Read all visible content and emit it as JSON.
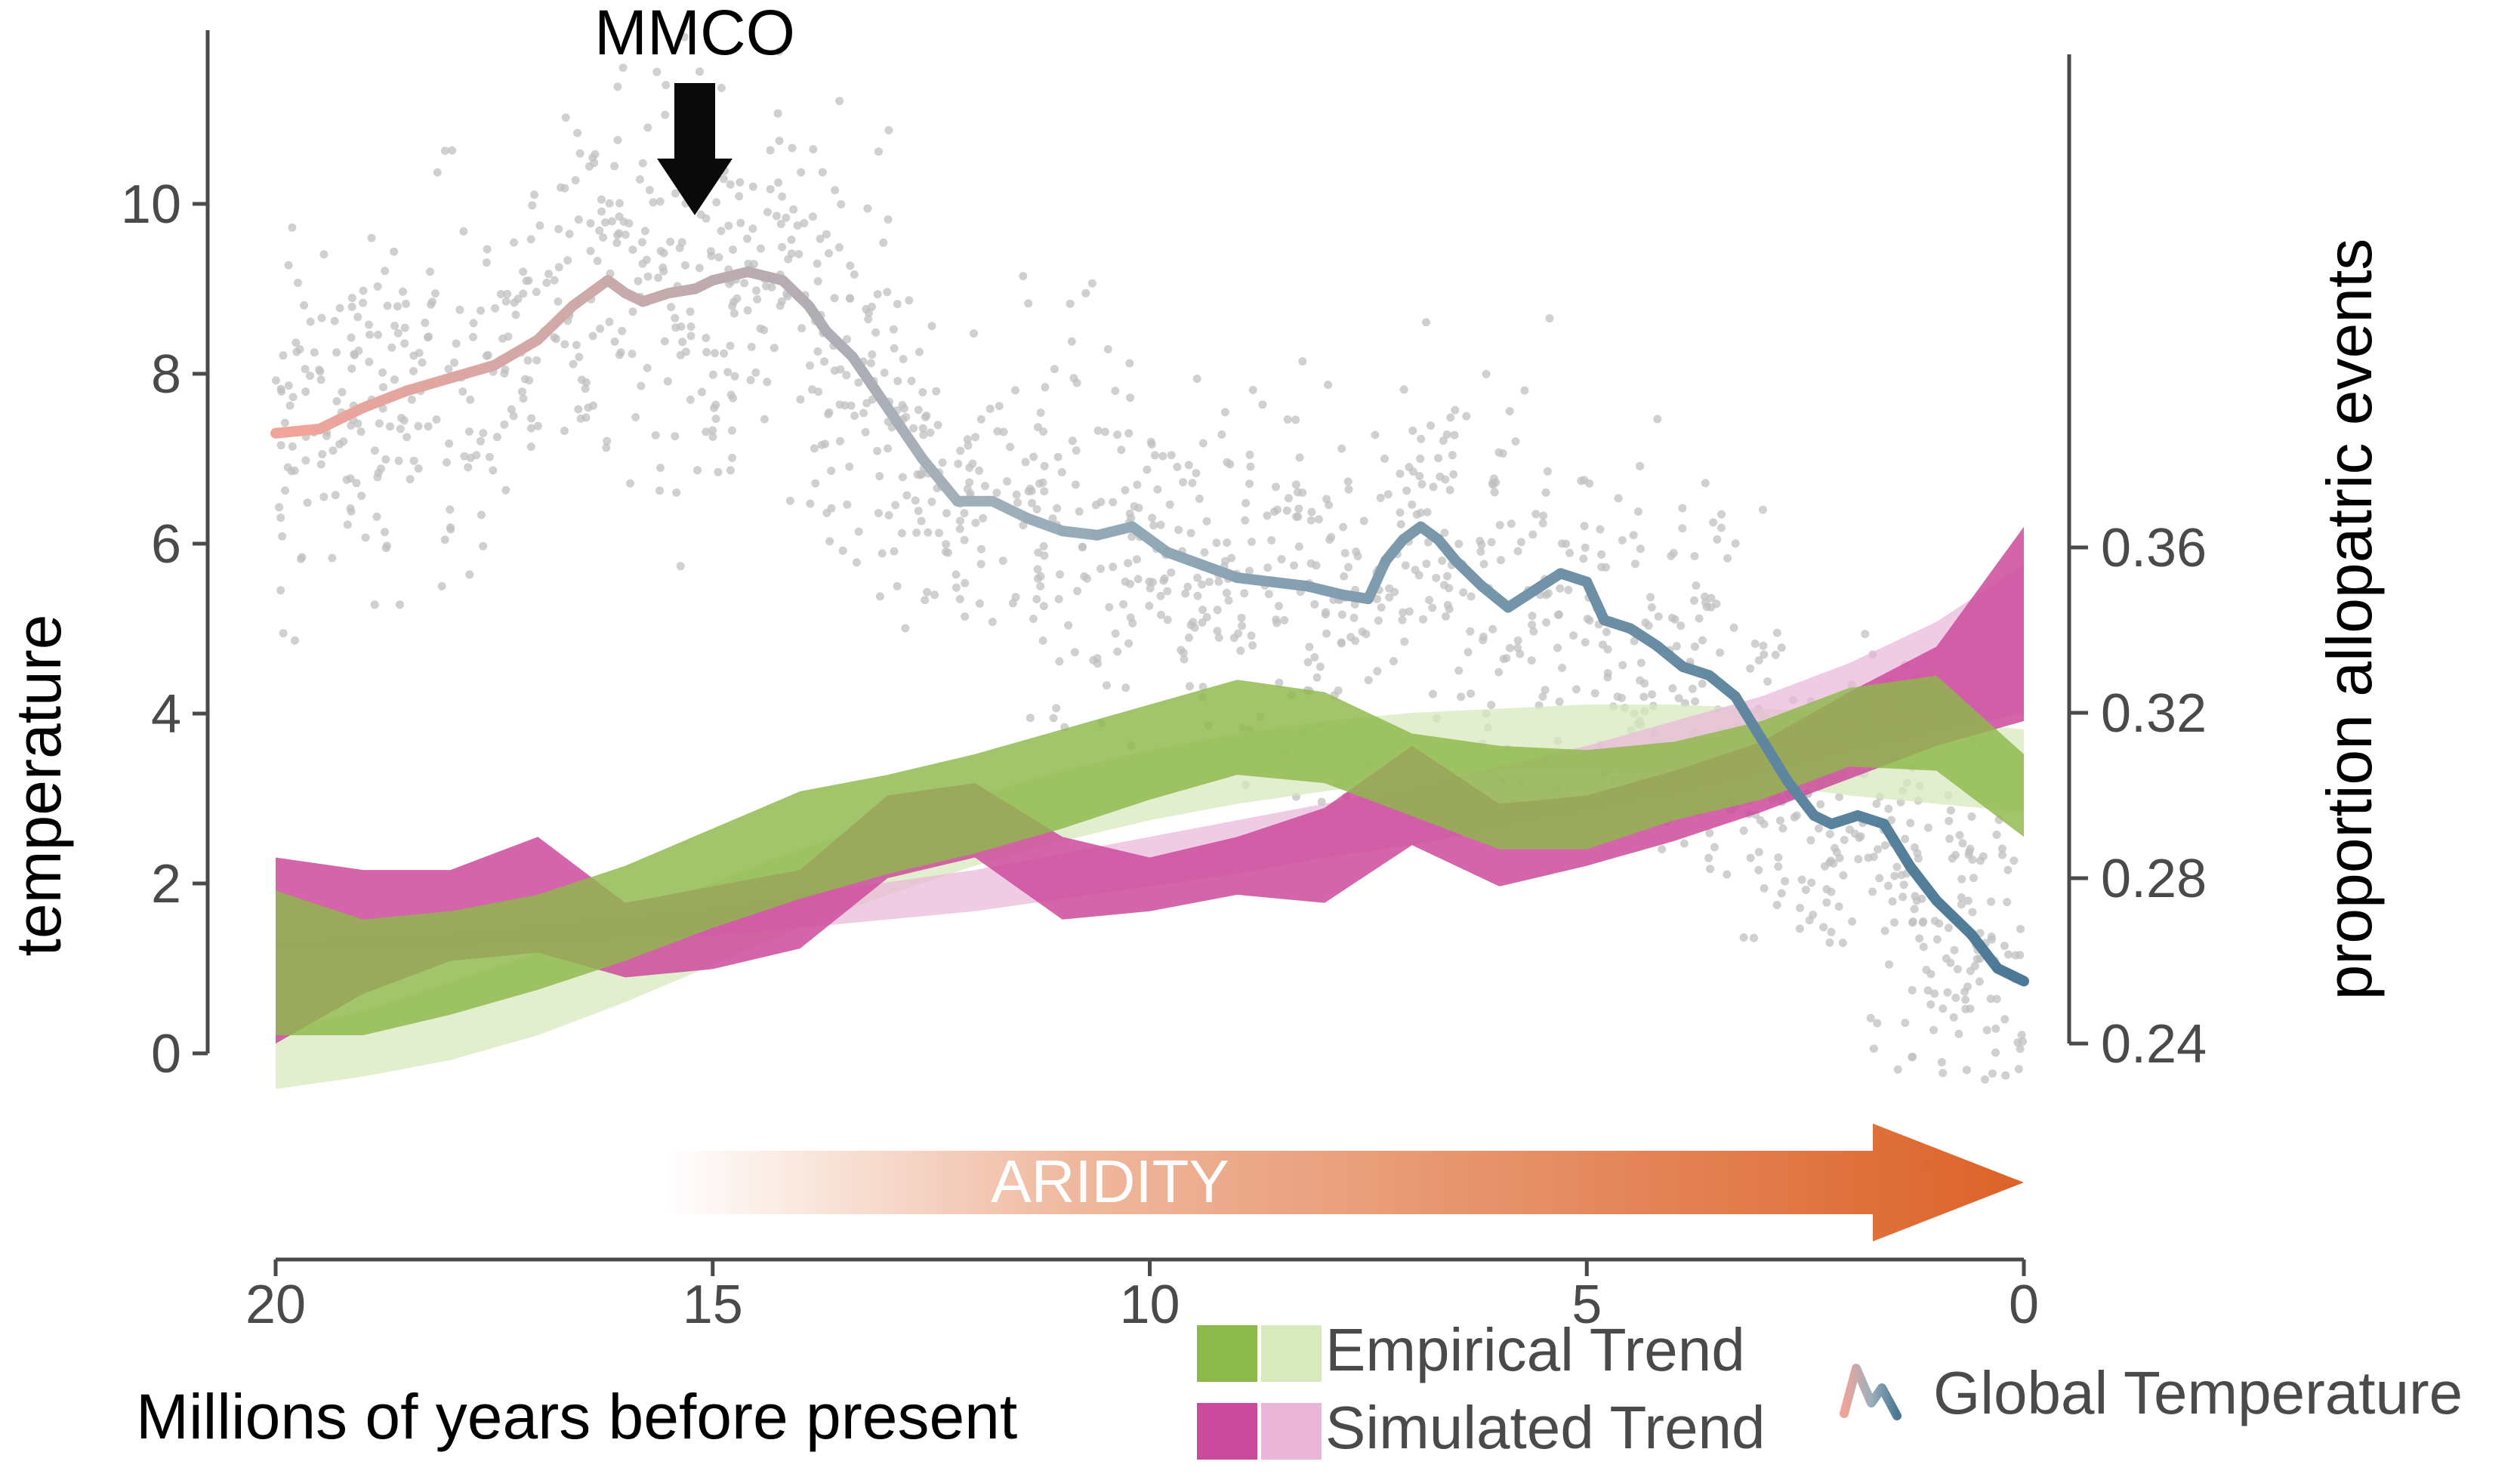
{
  "chart_data": {
    "type": "line",
    "title": "",
    "xlabel": "Millions of years before present",
    "ylabel_left": "temperature",
    "ylabel_right": "proportion allopatric events",
    "x_reversed": true,
    "xlim": [
      20,
      0
    ],
    "ylim_left": [
      -1,
      12
    ],
    "ylim_right": [
      0.22,
      0.365
    ],
    "x_ticks": [
      "20",
      "15",
      "10",
      "5",
      "0"
    ],
    "y_left_ticks": [
      "0",
      "2",
      "4",
      "6",
      "8",
      "10"
    ],
    "y_right_ticks": [
      "0.24",
      "0.28",
      "0.32",
      "0.36"
    ],
    "grid": false,
    "annotations": {
      "mmco": {
        "label": "MMCO",
        "x": 15.2
      },
      "aridity": {
        "label": "ARIDITY",
        "x_start": 15.5,
        "x_end": 0
      }
    },
    "legend": {
      "placement": "bottom-right",
      "empirical": "Empirical Trend",
      "simulated": "Simulated Trend",
      "temperature": "Global Temperature"
    },
    "colors": {
      "empirical_dark": "#8db84a",
      "empirical_light": "#d7e9bd",
      "simulated_dark": "#cc4a9c",
      "simulated_light": "#eab6d8",
      "temp_warm": "#f0a49a",
      "temp_mid": "#9eb0bc",
      "temp_cool": "#4a7896",
      "points": "#c0c0c0",
      "aridity": "#dc6228"
    },
    "series": [
      {
        "name": "Global Temperature",
        "axis": "left",
        "x": [
          20,
          19.5,
          19,
          18.5,
          18,
          17.5,
          17,
          16.6,
          16.2,
          16.0,
          15.8,
          15.5,
          15.2,
          15.0,
          14.6,
          14.2,
          13.9,
          13.7,
          13.4,
          13.0,
          12.6,
          12.2,
          11.8,
          11.4,
          11.0,
          10.6,
          10.2,
          9.8,
          9.4,
          9.0,
          8.6,
          8.2,
          7.8,
          7.5,
          7.3,
          7.1,
          6.9,
          6.7,
          6.5,
          6.2,
          5.9,
          5.6,
          5.3,
          5.0,
          4.8,
          4.5,
          4.2,
          3.9,
          3.6,
          3.3,
          3.0,
          2.7,
          2.4,
          2.2,
          1.9,
          1.6,
          1.3,
          1.0,
          0.6,
          0.3,
          0
        ],
        "y": [
          7.3,
          7.35,
          7.6,
          7.8,
          7.95,
          8.1,
          8.4,
          8.8,
          9.1,
          8.95,
          8.85,
          8.95,
          9.0,
          9.1,
          9.2,
          9.1,
          8.8,
          8.5,
          8.2,
          7.6,
          7.0,
          6.5,
          6.5,
          6.3,
          6.15,
          6.1,
          6.2,
          5.9,
          5.75,
          5.6,
          5.55,
          5.5,
          5.4,
          5.35,
          5.8,
          6.05,
          6.2,
          6.05,
          5.8,
          5.5,
          5.25,
          5.45,
          5.65,
          5.55,
          5.1,
          5.0,
          4.8,
          4.55,
          4.45,
          4.2,
          3.7,
          3.2,
          2.8,
          2.7,
          2.8,
          2.7,
          2.2,
          1.8,
          1.4,
          1.0,
          0.85
        ]
      },
      {
        "name": "Empirical Trend",
        "axis": "right",
        "x": [
          20,
          19,
          18,
          17,
          16,
          15,
          14,
          13,
          12,
          11,
          10,
          9,
          8,
          7,
          6,
          5,
          4,
          3,
          2,
          1,
          0
        ],
        "y": [
          0.255,
          0.256,
          0.26,
          0.266,
          0.273,
          0.281,
          0.288,
          0.293,
          0.298,
          0.304,
          0.311,
          0.317,
          0.313,
          0.303,
          0.299,
          0.298,
          0.303,
          0.308,
          0.316,
          0.32,
          0.304
        ],
        "lower": [
          0.242,
          0.242,
          0.247,
          0.253,
          0.26,
          0.268,
          0.275,
          0.281,
          0.286,
          0.292,
          0.299,
          0.305,
          0.303,
          0.295,
          0.287,
          0.287,
          0.294,
          0.299,
          0.307,
          0.306,
          0.29
        ],
        "upper": [
          0.277,
          0.27,
          0.272,
          0.276,
          0.283,
          0.292,
          0.301,
          0.305,
          0.31,
          0.316,
          0.322,
          0.328,
          0.325,
          0.315,
          0.312,
          0.311,
          0.313,
          0.318,
          0.326,
          0.329,
          0.31
        ],
        "trend_lower": [
          0.229,
          0.232,
          0.236,
          0.242,
          0.25,
          0.259,
          0.268,
          0.276,
          0.283,
          0.289,
          0.294,
          0.298,
          0.301,
          0.304,
          0.306,
          0.306,
          0.305,
          0.303,
          0.3,
          0.298,
          0.296
        ],
        "trend_upper": [
          0.243,
          0.248,
          0.255,
          0.262,
          0.27,
          0.279,
          0.287,
          0.294,
          0.3,
          0.306,
          0.311,
          0.315,
          0.318,
          0.32,
          0.321,
          0.322,
          0.322,
          0.321,
          0.32,
          0.318,
          0.316
        ]
      },
      {
        "name": "Simulated Trend",
        "axis": "right",
        "x": [
          20,
          19,
          18,
          17,
          16,
          15,
          14,
          13,
          12,
          11,
          10,
          9,
          8,
          7,
          6,
          5,
          4,
          3,
          2,
          1,
          0
        ],
        "y": [
          0.262,
          0.267,
          0.27,
          0.276,
          0.264,
          0.268,
          0.272,
          0.29,
          0.294,
          0.28,
          0.278,
          0.282,
          0.286,
          0.3,
          0.288,
          0.292,
          0.298,
          0.305,
          0.315,
          0.325,
          0.333
        ],
        "lower": [
          0.24,
          0.252,
          0.26,
          0.262,
          0.256,
          0.258,
          0.263,
          0.28,
          0.285,
          0.27,
          0.272,
          0.276,
          0.274,
          0.288,
          0.278,
          0.283,
          0.289,
          0.296,
          0.304,
          0.312,
          0.318
        ],
        "upper": [
          0.285,
          0.282,
          0.282,
          0.29,
          0.274,
          0.278,
          0.282,
          0.3,
          0.303,
          0.29,
          0.285,
          0.29,
          0.297,
          0.312,
          0.298,
          0.3,
          0.306,
          0.313,
          0.325,
          0.336,
          0.365
        ],
        "trend_lower": [
          0.262,
          0.262,
          0.263,
          0.264,
          0.265,
          0.266,
          0.268,
          0.27,
          0.272,
          0.275,
          0.278,
          0.281,
          0.285,
          0.288,
          0.292,
          0.296,
          0.3,
          0.305,
          0.31,
          0.315,
          0.32
        ],
        "trend_upper": [
          0.265,
          0.266,
          0.267,
          0.269,
          0.271,
          0.273,
          0.276,
          0.279,
          0.282,
          0.286,
          0.29,
          0.294,
          0.298,
          0.302,
          0.307,
          0.312,
          0.318,
          0.324,
          0.332,
          0.342,
          0.356
        ]
      }
    ]
  }
}
